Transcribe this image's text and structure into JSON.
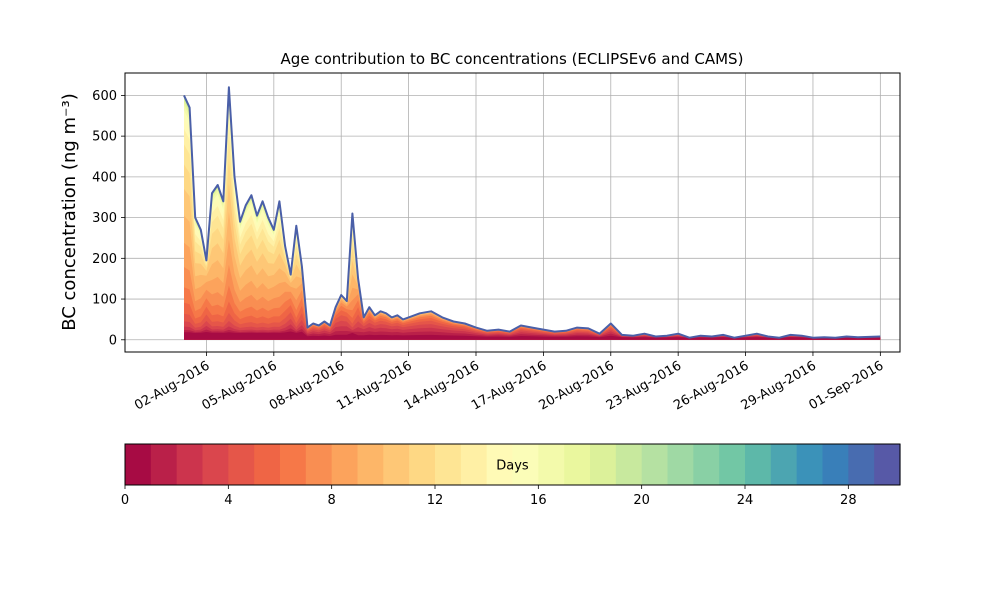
{
  "chart_data": {
    "type": "area",
    "title": "Age contribution to BC concentrations (ECLIPSEv6 and CAMS)",
    "xlabel": "",
    "ylabel": "BC concentration (ng m⁻³)",
    "ylim": [
      -30,
      655
    ],
    "xlim": [
      "2016-07-29T09:00",
      "2016-09-01T21:00"
    ],
    "y_ticks": [
      0,
      100,
      200,
      300,
      400,
      500,
      600
    ],
    "x_ticks": [
      {
        "date": "2016-08-02",
        "label": "02-Aug-2016"
      },
      {
        "date": "2016-08-05",
        "label": "05-Aug-2016"
      },
      {
        "date": "2016-08-08",
        "label": "08-Aug-2016"
      },
      {
        "date": "2016-08-11",
        "label": "11-Aug-2016"
      },
      {
        "date": "2016-08-14",
        "label": "14-Aug-2016"
      },
      {
        "date": "2016-08-17",
        "label": "17-Aug-2016"
      },
      {
        "date": "2016-08-20",
        "label": "20-Aug-2016"
      },
      {
        "date": "2016-08-23",
        "label": "23-Aug-2016"
      },
      {
        "date": "2016-08-26",
        "label": "26-Aug-2016"
      },
      {
        "date": "2016-08-29",
        "label": "29-Aug-2016"
      },
      {
        "date": "2016-09-01",
        "label": "01-Sep-2016"
      }
    ],
    "grid": true,
    "total": {
      "x": [
        "2016-08-01T00:00",
        "2016-08-01T06:00",
        "2016-08-01T12:00",
        "2016-08-01T18:00",
        "2016-08-02T00:00",
        "2016-08-02T06:00",
        "2016-08-02T12:00",
        "2016-08-02T18:00",
        "2016-08-03T00:00",
        "2016-08-03T06:00",
        "2016-08-03T12:00",
        "2016-08-03T18:00",
        "2016-08-04T00:00",
        "2016-08-04T06:00",
        "2016-08-04T12:00",
        "2016-08-04T18:00",
        "2016-08-05T00:00",
        "2016-08-05T06:00",
        "2016-08-05T12:00",
        "2016-08-05T18:00",
        "2016-08-06T00:00",
        "2016-08-06T06:00",
        "2016-08-06T12:00",
        "2016-08-06T18:00",
        "2016-08-07T00:00",
        "2016-08-07T06:00",
        "2016-08-07T12:00",
        "2016-08-07T18:00",
        "2016-08-08T00:00",
        "2016-08-08T06:00",
        "2016-08-08T12:00",
        "2016-08-08T18:00",
        "2016-08-09T00:00",
        "2016-08-09T06:00",
        "2016-08-09T12:00",
        "2016-08-09T18:00",
        "2016-08-10T00:00",
        "2016-08-10T06:00",
        "2016-08-10T12:00",
        "2016-08-10T18:00",
        "2016-08-11T00:00",
        "2016-08-11T12:00",
        "2016-08-12T00:00",
        "2016-08-12T12:00",
        "2016-08-13T00:00",
        "2016-08-13T12:00",
        "2016-08-14T00:00",
        "2016-08-14T12:00",
        "2016-08-15T00:00",
        "2016-08-15T12:00",
        "2016-08-16T00:00",
        "2016-08-16T12:00",
        "2016-08-17T00:00",
        "2016-08-17T12:00",
        "2016-08-18T00:00",
        "2016-08-18T12:00",
        "2016-08-19T00:00",
        "2016-08-19T12:00",
        "2016-08-20T00:00",
        "2016-08-20T12:00",
        "2016-08-21T00:00",
        "2016-08-21T12:00",
        "2016-08-22T00:00",
        "2016-08-22T12:00",
        "2016-08-23T00:00",
        "2016-08-23T12:00",
        "2016-08-24T00:00",
        "2016-08-24T12:00",
        "2016-08-25T00:00",
        "2016-08-25T12:00",
        "2016-08-26T00:00",
        "2016-08-26T12:00",
        "2016-08-27T00:00",
        "2016-08-27T12:00",
        "2016-08-28T00:00",
        "2016-08-28T12:00",
        "2016-08-29T00:00",
        "2016-08-29T12:00",
        "2016-08-30T00:00",
        "2016-08-30T12:00",
        "2016-08-31T00:00",
        "2016-08-31T12:00",
        "2016-09-01T00:00"
      ],
      "y": [
        600,
        570,
        300,
        270,
        195,
        360,
        380,
        340,
        620,
        400,
        290,
        330,
        355,
        305,
        340,
        300,
        270,
        340,
        230,
        160,
        280,
        180,
        30,
        40,
        35,
        45,
        35,
        80,
        110,
        95,
        310,
        150,
        55,
        80,
        60,
        70,
        65,
        55,
        60,
        50,
        55,
        65,
        70,
        55,
        45,
        40,
        30,
        22,
        25,
        20,
        35,
        30,
        25,
        20,
        22,
        30,
        28,
        15,
        40,
        12,
        10,
        15,
        8,
        10,
        15,
        5,
        10,
        8,
        12,
        5,
        10,
        15,
        8,
        5,
        12,
        10,
        5,
        6,
        5,
        8,
        6,
        7,
        8
      ]
    },
    "legend": {
      "type": "colorbar",
      "label": "Days",
      "min": 0,
      "max": 30,
      "ticks": [
        0,
        4,
        8,
        12,
        16,
        20,
        24,
        28
      ]
    }
  }
}
